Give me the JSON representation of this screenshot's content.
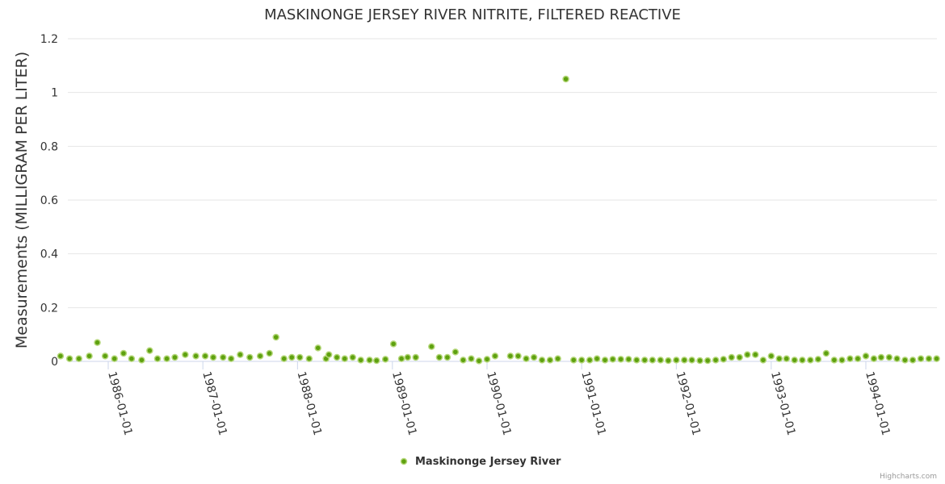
{
  "chart_data": {
    "type": "scatter",
    "title": "MASKINONGE JERSEY RIVER NITRITE, FILTERED REACTIVE",
    "xlabel": "",
    "ylabel": "Measurements (MILLIGRAM PER LITER)",
    "ylim": [
      0,
      1.2
    ],
    "y_ticks": [
      0,
      0.2,
      0.4,
      0.6,
      0.8,
      1,
      1.2
    ],
    "y_tick_labels": [
      "0",
      "0.2",
      "0.4",
      "0.6",
      "0.8",
      "1",
      "1.2"
    ],
    "x_range": [
      "1985-06-01",
      "1994-10-01"
    ],
    "x_ticks": [
      "1986-01-01",
      "1987-01-01",
      "1988-01-01",
      "1989-01-01",
      "1990-01-01",
      "1991-01-01",
      "1992-01-01",
      "1993-01-01",
      "1994-01-01"
    ],
    "grid": true,
    "legend_position": "bottom-center",
    "series": [
      {
        "name": "Maskinonge Jersey River",
        "color": "#5ea10f",
        "points": [
          [
            "1985-07-01",
            0.02
          ],
          [
            "1985-08-05",
            0.01
          ],
          [
            "1985-09-10",
            0.01
          ],
          [
            "1985-10-20",
            0.02
          ],
          [
            "1985-11-20",
            0.07
          ],
          [
            "1985-12-20",
            0.02
          ],
          [
            "1986-01-25",
            0.01
          ],
          [
            "1986-03-01",
            0.03
          ],
          [
            "1986-04-01",
            0.01
          ],
          [
            "1986-05-10",
            0.005
          ],
          [
            "1986-06-10",
            0.04
          ],
          [
            "1986-07-10",
            0.01
          ],
          [
            "1986-08-15",
            0.01
          ],
          [
            "1986-09-15",
            0.015
          ],
          [
            "1986-10-25",
            0.025
          ],
          [
            "1986-12-05",
            0.02
          ],
          [
            "1987-01-10",
            0.02
          ],
          [
            "1987-02-10",
            0.015
          ],
          [
            "1987-03-20",
            0.015
          ],
          [
            "1987-04-20",
            0.01
          ],
          [
            "1987-05-25",
            0.025
          ],
          [
            "1987-07-01",
            0.015
          ],
          [
            "1987-08-10",
            0.02
          ],
          [
            "1987-09-15",
            0.03
          ],
          [
            "1987-10-10",
            0.09
          ],
          [
            "1987-11-10",
            0.01
          ],
          [
            "1987-12-10",
            0.015
          ],
          [
            "1988-01-10",
            0.015
          ],
          [
            "1988-02-15",
            0.01
          ],
          [
            "1988-03-20",
            0.05
          ],
          [
            "1988-04-20",
            0.01
          ],
          [
            "1988-05-01",
            0.025
          ],
          [
            "1988-06-01",
            0.015
          ],
          [
            "1988-07-01",
            0.01
          ],
          [
            "1988-08-01",
            0.015
          ],
          [
            "1988-09-01",
            0.005
          ],
          [
            "1988-10-05",
            0.005
          ],
          [
            "1988-11-01",
            0.003
          ],
          [
            "1988-12-05",
            0.008
          ],
          [
            "1989-01-05",
            0.065
          ],
          [
            "1989-02-05",
            0.01
          ],
          [
            "1989-03-01",
            0.015
          ],
          [
            "1989-04-01",
            0.015
          ],
          [
            "1989-06-01",
            0.055
          ],
          [
            "1989-07-01",
            0.015
          ],
          [
            "1989-08-01",
            0.015
          ],
          [
            "1989-09-01",
            0.035
          ],
          [
            "1989-10-01",
            0.005
          ],
          [
            "1989-11-01",
            0.01
          ],
          [
            "1989-12-01",
            0.002
          ],
          [
            "1990-01-01",
            0.008
          ],
          [
            "1990-02-01",
            0.02
          ],
          [
            "1990-04-01",
            0.02
          ],
          [
            "1990-05-01",
            0.02
          ],
          [
            "1990-06-01",
            0.01
          ],
          [
            "1990-07-01",
            0.015
          ],
          [
            "1990-08-01",
            0.005
          ],
          [
            "1990-09-01",
            0.005
          ],
          [
            "1990-10-01",
            0.01
          ],
          [
            "1990-11-01",
            1.05
          ],
          [
            "1990-12-01",
            0.005
          ],
          [
            "1991-01-01",
            0.005
          ],
          [
            "1991-02-01",
            0.005
          ],
          [
            "1991-03-01",
            0.01
          ],
          [
            "1991-04-01",
            0.005
          ],
          [
            "1991-05-01",
            0.008
          ],
          [
            "1991-06-01",
            0.008
          ],
          [
            "1991-07-01",
            0.008
          ],
          [
            "1991-08-01",
            0.005
          ],
          [
            "1991-09-01",
            0.005
          ],
          [
            "1991-10-01",
            0.005
          ],
          [
            "1991-11-01",
            0.005
          ],
          [
            "1991-12-01",
            0.003
          ],
          [
            "1992-01-01",
            0.005
          ],
          [
            "1992-02-01",
            0.005
          ],
          [
            "1992-03-01",
            0.005
          ],
          [
            "1992-04-01",
            0.003
          ],
          [
            "1992-05-01",
            0.003
          ],
          [
            "1992-06-01",
            0.005
          ],
          [
            "1992-07-01",
            0.008
          ],
          [
            "1992-08-01",
            0.015
          ],
          [
            "1992-09-01",
            0.015
          ],
          [
            "1992-10-01",
            0.025
          ],
          [
            "1992-11-01",
            0.025
          ],
          [
            "1992-12-01",
            0.005
          ],
          [
            "1993-01-01",
            0.02
          ],
          [
            "1993-02-01",
            0.01
          ],
          [
            "1993-03-01",
            0.01
          ],
          [
            "1993-04-01",
            0.005
          ],
          [
            "1993-05-01",
            0.005
          ],
          [
            "1993-06-01",
            0.005
          ],
          [
            "1993-07-01",
            0.008
          ],
          [
            "1993-08-01",
            0.03
          ],
          [
            "1993-09-01",
            0.005
          ],
          [
            "1993-10-01",
            0.005
          ],
          [
            "1993-11-01",
            0.01
          ],
          [
            "1993-12-01",
            0.01
          ],
          [
            "1994-01-01",
            0.02
          ],
          [
            "1994-02-01",
            0.01
          ],
          [
            "1994-03-01",
            0.015
          ],
          [
            "1994-04-01",
            0.015
          ],
          [
            "1994-05-01",
            0.01
          ],
          [
            "1994-06-01",
            0.005
          ],
          [
            "1994-07-01",
            0.005
          ],
          [
            "1994-08-01",
            0.01
          ],
          [
            "1994-09-01",
            0.01
          ],
          [
            "1994-10-01",
            0.01
          ]
        ]
      }
    ],
    "credits": "Highcharts.com"
  }
}
